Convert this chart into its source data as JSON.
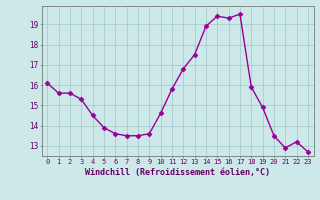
{
  "x": [
    0,
    1,
    2,
    3,
    4,
    5,
    6,
    7,
    8,
    9,
    10,
    11,
    12,
    13,
    14,
    15,
    16,
    17,
    18,
    19,
    20,
    21,
    22,
    23
  ],
  "y": [
    16.1,
    15.6,
    15.6,
    15.3,
    14.5,
    13.9,
    13.6,
    13.5,
    13.5,
    13.6,
    14.6,
    15.8,
    16.8,
    17.5,
    18.9,
    19.4,
    19.3,
    19.5,
    15.9,
    14.9,
    13.5,
    12.9,
    13.2,
    12.7
  ],
  "line_color": "#990099",
  "marker": "D",
  "marker_size": 2.5,
  "bg_color": "#cce8e8",
  "grid_color": "#aacccc",
  "xlabel": "Windchill (Refroidissement éolien,°C)",
  "xlabel_color": "#660066",
  "tick_color": "#660066",
  "ylim": [
    12.5,
    19.9
  ],
  "xlim": [
    -0.5,
    23.5
  ],
  "yticks": [
    13,
    14,
    15,
    16,
    17,
    18,
    19
  ],
  "xticks": [
    0,
    1,
    2,
    3,
    4,
    5,
    6,
    7,
    8,
    9,
    10,
    11,
    12,
    13,
    14,
    15,
    16,
    17,
    18,
    19,
    20,
    21,
    22,
    23
  ]
}
